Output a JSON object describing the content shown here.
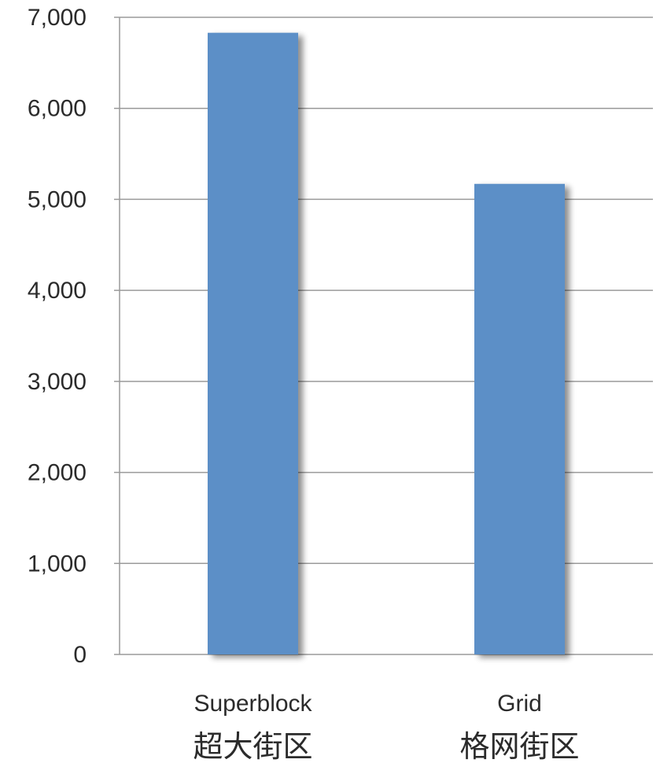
{
  "chart_data": {
    "type": "bar",
    "categories": [
      "Superblock",
      "Grid"
    ],
    "categories_secondary": [
      "超大街区",
      "格网街区"
    ],
    "values": [
      6830,
      5170
    ],
    "ylim": [
      0,
      7000
    ],
    "yticks": [
      "0",
      "1,000",
      "2,000",
      "3,000",
      "4,000",
      "5,000",
      "6,000",
      "7,000"
    ],
    "title": "",
    "xlabel": "",
    "ylabel": "",
    "grid": true,
    "legend": "none",
    "bar_color": "#5b8fc7"
  }
}
